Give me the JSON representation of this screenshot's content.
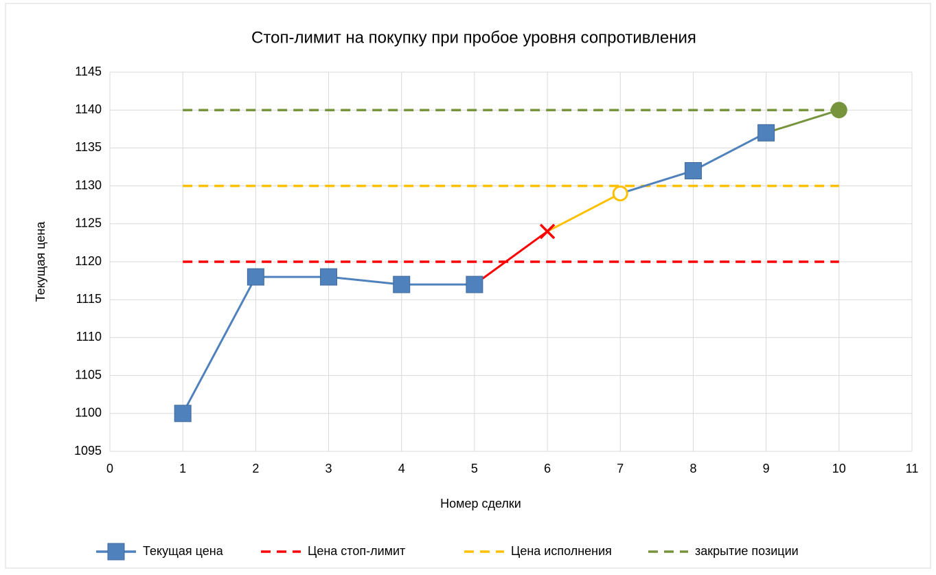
{
  "chart_data": {
    "type": "line",
    "title": "Стоп-лимит на покупку при пробое уровня сопротивления",
    "x_label": "Номер сделки",
    "y_label": "Текущая цена",
    "x": [
      1,
      2,
      3,
      4,
      5,
      6,
      7,
      8,
      9,
      10
    ],
    "series": [
      {
        "name": "Текущая цена",
        "color": "#4f81bd",
        "style": "solid",
        "marker": "square",
        "values": [
          1100,
          1118,
          1118,
          1117,
          1117,
          1124,
          1129,
          1132,
          1137,
          1140
        ],
        "segment_colors": [
          "#4f81bd",
          "#4f81bd",
          "#4f81bd",
          "#4f81bd",
          "#ff0000",
          "#ffc000",
          "#4f81bd",
          "#4f81bd",
          "#77933c"
        ],
        "marker_styles": [
          "square",
          "square",
          "square",
          "square",
          "square",
          "x",
          "open-circle",
          "square",
          "square",
          "circle"
        ],
        "marker_colors": [
          "#4f81bd",
          "#4f81bd",
          "#4f81bd",
          "#4f81bd",
          "#4f81bd",
          "#ff0000",
          "#ffc000",
          "#4f81bd",
          "#4f81bd",
          "#77933c"
        ]
      },
      {
        "name": "Цена стоп-лимит",
        "color": "#ff0000",
        "style": "dashed",
        "values": [
          1120,
          1120,
          1120,
          1120,
          1120,
          1120,
          1120,
          1120,
          1120,
          1120
        ]
      },
      {
        "name": "Цена исполнения",
        "color": "#ffc000",
        "style": "dashed",
        "values": [
          1130,
          1130,
          1130,
          1130,
          1130,
          1130,
          1130,
          1130,
          1130,
          1130
        ]
      },
      {
        "name": "закрытие позиции",
        "color": "#77933c",
        "style": "dashed",
        "values": [
          1140,
          1140,
          1140,
          1140,
          1140,
          1140,
          1140,
          1140,
          1140,
          1140
        ]
      }
    ],
    "xlim": [
      0,
      11
    ],
    "xticks": [
      0,
      1,
      2,
      3,
      4,
      5,
      6,
      7,
      8,
      9,
      10,
      11
    ],
    "ylim": [
      1095,
      1145
    ],
    "yticks": [
      1095,
      1100,
      1105,
      1110,
      1115,
      1120,
      1125,
      1130,
      1135,
      1140,
      1145
    ],
    "grid": true,
    "legend": "bottom"
  }
}
